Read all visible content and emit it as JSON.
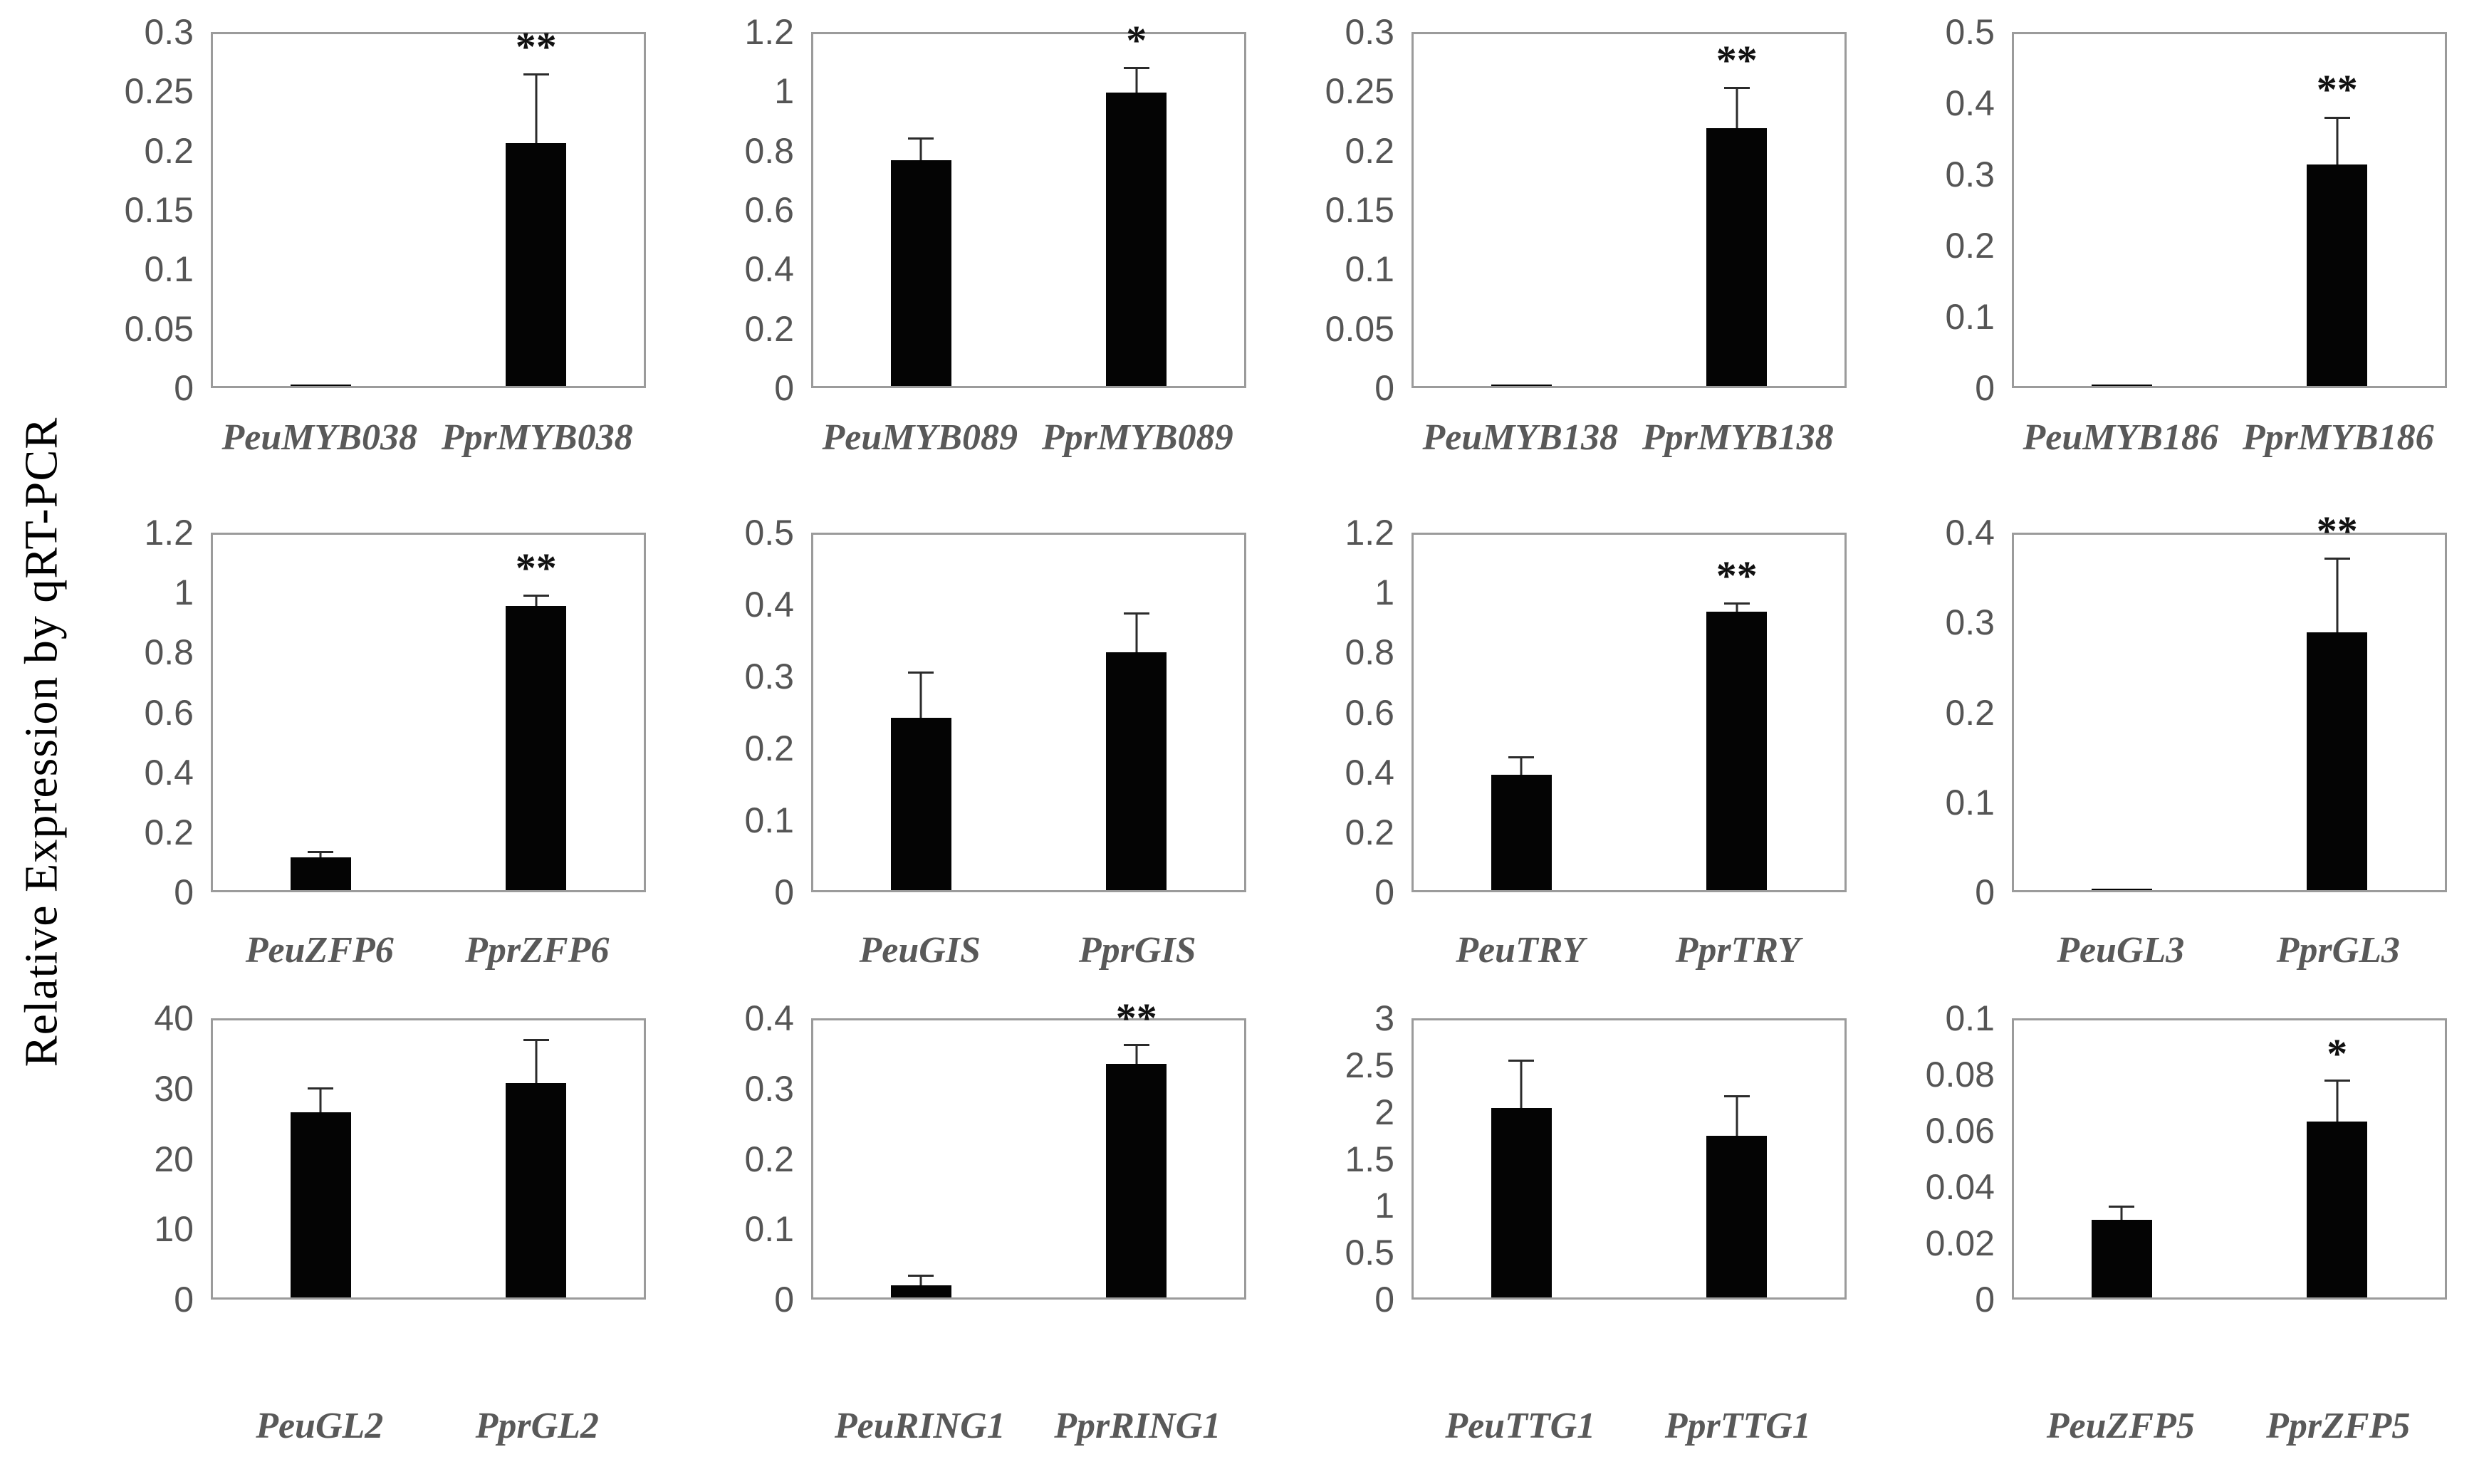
{
  "figure": {
    "ylabel": "Relative Expression by qRT-PCR"
  },
  "colors": {
    "bar": "#040404",
    "axis_border": "#9b9b9b",
    "tick_text": "#555555",
    "category_text": "#595959",
    "error_bar": "#2b2b2b",
    "significance": "#111111"
  },
  "chart_data": [
    {
      "type": "bar",
      "categories": [
        "PeuMYB038",
        "PprMYB038"
      ],
      "values": [
        0.001,
        0.207
      ],
      "errors": [
        0,
        0.058
      ],
      "sig": [
        "",
        "**"
      ],
      "ylim": [
        0,
        0.3
      ],
      "ytick_labels": [
        "0",
        "0.05",
        "0.1",
        "0.15",
        "0.2",
        "0.25",
        "0.3"
      ],
      "grid": false,
      "legend": "none"
    },
    {
      "type": "bar",
      "categories": [
        "PeuMYB089",
        "PprMYB089"
      ],
      "values": [
        0.77,
        1.0
      ],
      "errors": [
        0.07,
        0.08
      ],
      "sig": [
        "",
        "*"
      ],
      "ylim": [
        0,
        1.2
      ],
      "ytick_labels": [
        "0",
        "0.2",
        "0.4",
        "0.6",
        "0.8",
        "1",
        "1.2"
      ],
      "grid": false,
      "legend": "none"
    },
    {
      "type": "bar",
      "categories": [
        "PeuMYB138",
        "PprMYB138"
      ],
      "values": [
        0.001,
        0.22
      ],
      "errors": [
        0,
        0.033
      ],
      "sig": [
        "",
        "**"
      ],
      "ylim": [
        0,
        0.3
      ],
      "ytick_labels": [
        "0",
        "0.05",
        "0.1",
        "0.15",
        "0.2",
        "0.25",
        "0.3"
      ],
      "grid": false,
      "legend": "none"
    },
    {
      "type": "bar",
      "categories": [
        "PeuMYB186",
        "PprMYB186"
      ],
      "values": [
        0.001,
        0.315
      ],
      "errors": [
        0,
        0.065
      ],
      "sig": [
        "",
        "**"
      ],
      "ylim": [
        0,
        0.5
      ],
      "ytick_labels": [
        "0",
        "0.1",
        "0.2",
        "0.3",
        "0.4",
        "0.5"
      ],
      "grid": false,
      "legend": "none"
    },
    {
      "type": "bar",
      "categories": [
        "PeuZFP6",
        "PprZFP6"
      ],
      "values": [
        0.11,
        0.96
      ],
      "errors": [
        0.015,
        0.03
      ],
      "sig": [
        "",
        "**"
      ],
      "ylim": [
        0,
        1.2
      ],
      "ytick_labels": [
        "0",
        "0.2",
        "0.4",
        "0.6",
        "0.8",
        "1",
        "1.2"
      ],
      "grid": false,
      "legend": "none"
    },
    {
      "type": "bar",
      "categories": [
        "PeuGIS",
        "PprGIS"
      ],
      "values": [
        0.243,
        0.335
      ],
      "errors": [
        0.062,
        0.053
      ],
      "sig": [
        "",
        ""
      ],
      "ylim": [
        0,
        0.5
      ],
      "ytick_labels": [
        "0",
        "0.1",
        "0.2",
        "0.3",
        "0.4",
        "0.5"
      ],
      "grid": false,
      "legend": "none"
    },
    {
      "type": "bar",
      "categories": [
        "PeuTRY",
        "PprTRY"
      ],
      "values": [
        0.39,
        0.94
      ],
      "errors": [
        0.055,
        0.025
      ],
      "sig": [
        "",
        "**"
      ],
      "ylim": [
        0,
        1.2
      ],
      "ytick_labels": [
        "0",
        "0.2",
        "0.4",
        "0.6",
        "0.8",
        "1",
        "1.2"
      ],
      "grid": false,
      "legend": "none"
    },
    {
      "type": "bar",
      "categories": [
        "PeuGL3",
        "PprGL3"
      ],
      "values": [
        0.001,
        0.29
      ],
      "errors": [
        0,
        0.082
      ],
      "sig": [
        "",
        "**"
      ],
      "ylim": [
        0,
        0.4
      ],
      "ytick_labels": [
        "0",
        "0.1",
        "0.2",
        "0.3",
        "0.4"
      ],
      "grid": false,
      "legend": "none"
    },
    {
      "type": "bar",
      "categories": [
        "PeuGL2",
        "PprGL2"
      ],
      "values": [
        26.7,
        31
      ],
      "errors": [
        3.3,
        6
      ],
      "sig": [
        "",
        ""
      ],
      "ylim": [
        0,
        40
      ],
      "ytick_labels": [
        "0",
        "10",
        "20",
        "30",
        "40"
      ],
      "grid": false,
      "legend": "none"
    },
    {
      "type": "bar",
      "categories": [
        "PeuRING1",
        "PprRING1"
      ],
      "values": [
        0.018,
        0.337
      ],
      "errors": [
        0.012,
        0.026
      ],
      "sig": [
        "",
        "**"
      ],
      "ylim": [
        0,
        0.4
      ],
      "ytick_labels": [
        "0",
        "0.1",
        "0.2",
        "0.3",
        "0.4"
      ],
      "grid": false,
      "legend": "none"
    },
    {
      "type": "bar",
      "categories": [
        "PeuTTG1",
        "PprTTG1"
      ],
      "values": [
        2.05,
        1.75
      ],
      "errors": [
        0.5,
        0.42
      ],
      "sig": [
        "",
        ""
      ],
      "ylim": [
        0,
        3
      ],
      "ytick_labels": [
        "0",
        "0.5",
        "1",
        "1.5",
        "2",
        "2.5",
        "3"
      ],
      "grid": false,
      "legend": "none"
    },
    {
      "type": "bar",
      "categories": [
        "PeuZFP5",
        "PprZFP5"
      ],
      "values": [
        0.028,
        0.0635
      ],
      "errors": [
        0.0045,
        0.0145
      ],
      "sig": [
        "",
        "*"
      ],
      "ylim": [
        0,
        0.1
      ],
      "ytick_labels": [
        "0",
        "0.02",
        "0.04",
        "0.06",
        "0.08",
        "0.1"
      ],
      "grid": false,
      "legend": "none"
    }
  ]
}
